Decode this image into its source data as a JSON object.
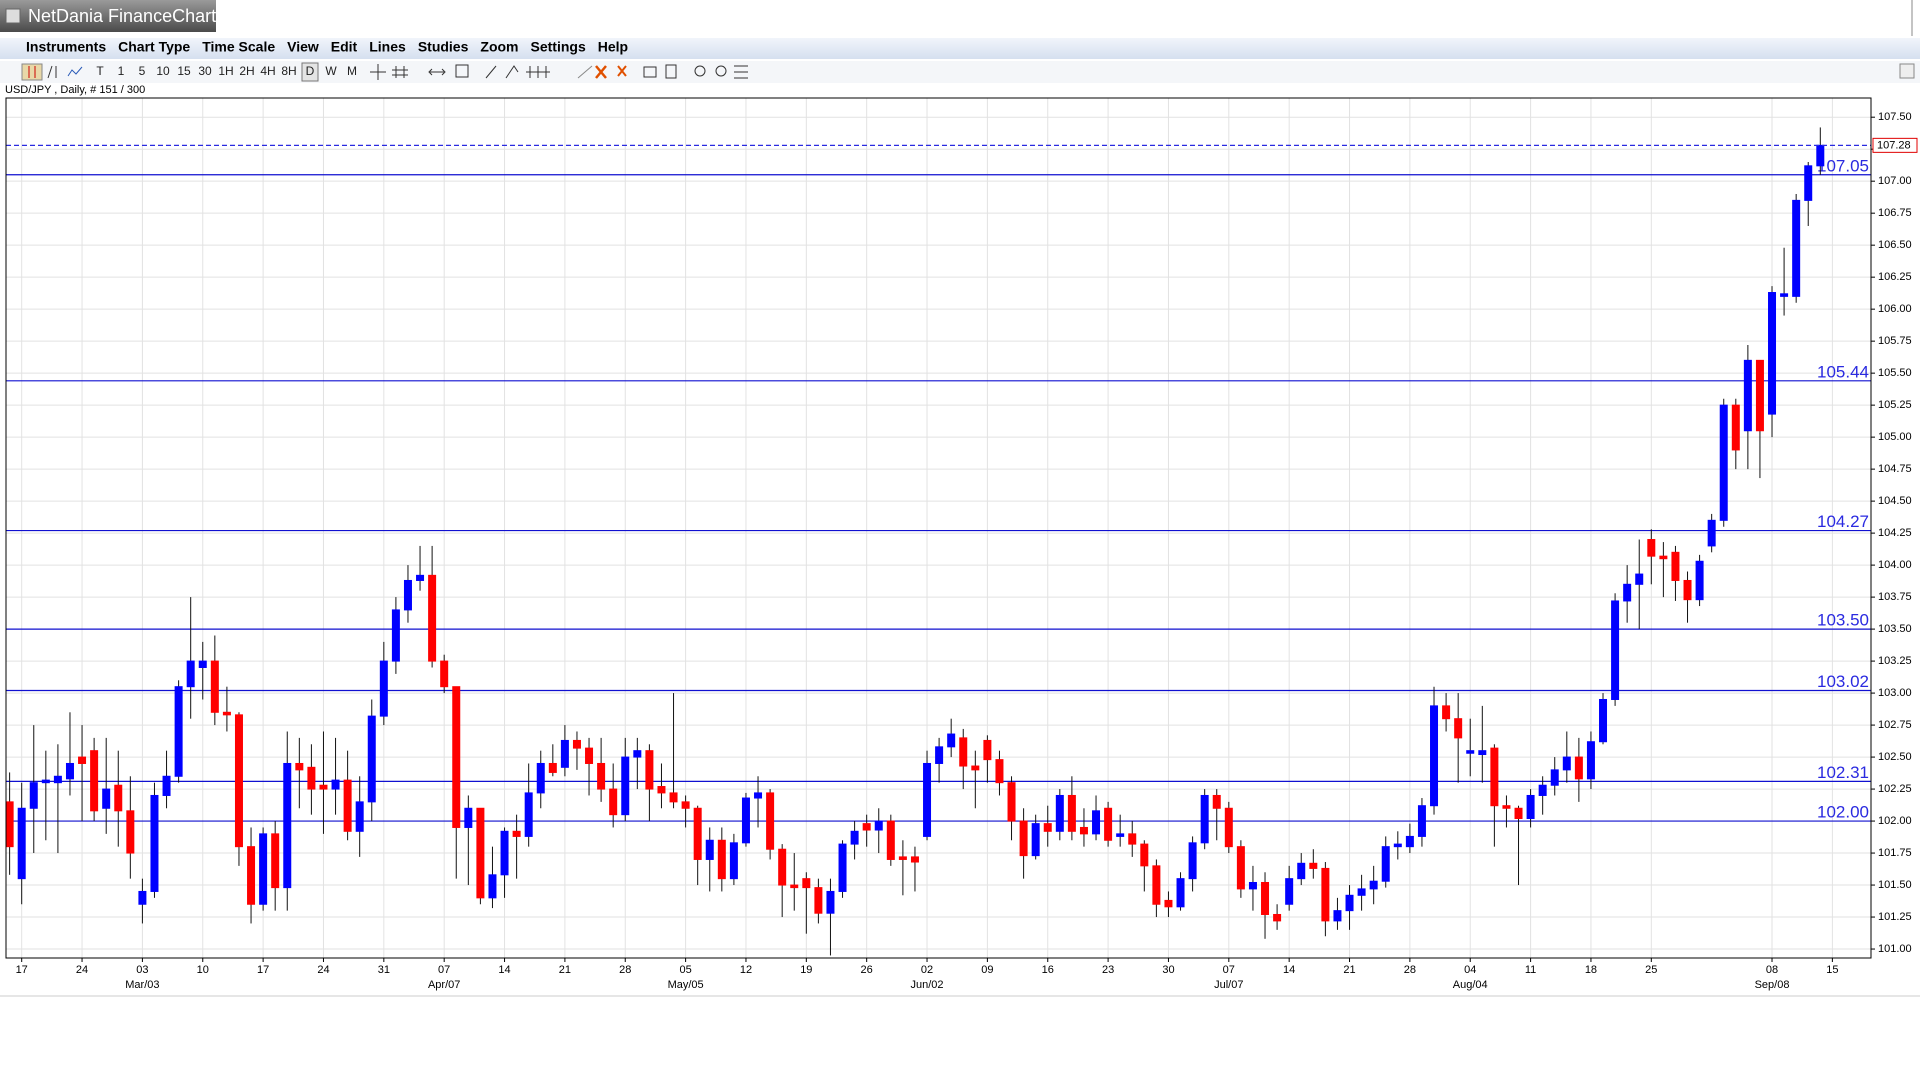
{
  "window": {
    "title": "NetDania FinanceChart",
    "menu": [
      "Instruments",
      "Chart Type",
      "Time Scale",
      "View",
      "Edit",
      "Lines",
      "Studies",
      "Zoom",
      "Settings",
      "Help"
    ],
    "timescales": [
      "T",
      "1",
      "5",
      "10",
      "15",
      "30",
      "1H",
      "2H",
      "4H",
      "8H",
      "D",
      "W",
      "M"
    ]
  },
  "chart_data": {
    "type": "candlestick",
    "title": "USD/JPY , Daily, # 151 / 300",
    "up_color": "#0000ff",
    "down_color": "#ff0000",
    "grid": true,
    "ylim": [
      100.93,
      107.65
    ],
    "xlim": [
      -0.3,
      154.2
    ],
    "yticks": [
      {
        "value": 101,
        "label": "101.00"
      },
      101.25,
      {
        "value": 101.5,
        "label": "101.50"
      },
      101.75,
      {
        "value": 102,
        "label": "102.00"
      },
      102.25,
      {
        "value": 102.5,
        "label": "102.50"
      },
      102.75,
      {
        "value": 103,
        "label": "103.00"
      },
      103.25,
      {
        "value": 103.5,
        "label": "103.50"
      },
      103.75,
      {
        "value": 104,
        "label": "104.00"
      },
      104.25,
      {
        "value": 104.5,
        "label": "104.50"
      },
      104.75,
      {
        "value": 105,
        "label": "105.00"
      },
      105.25,
      {
        "value": 105.5,
        "label": "105.50"
      },
      105.75,
      {
        "value": 106,
        "label": "106.00"
      },
      106.25,
      {
        "value": 106.5,
        "label": "106.50"
      },
      106.75,
      {
        "value": 107,
        "label": "107.00"
      },
      107.25,
      {
        "value": 107.5,
        "label": "107.50"
      }
    ],
    "xticks": [
      {
        "value": 1,
        "label": "17"
      },
      {
        "value": 6,
        "label": "24"
      },
      {
        "value": 11,
        "label": "03"
      },
      {
        "value": 16,
        "label": "10"
      },
      {
        "value": 21,
        "label": "17"
      },
      {
        "value": 26,
        "label": "24"
      },
      {
        "value": 31,
        "label": "31"
      },
      {
        "value": 36,
        "label": "07"
      },
      {
        "value": 41,
        "label": "14"
      },
      {
        "value": 46,
        "label": "21"
      },
      {
        "value": 51,
        "label": "28"
      },
      {
        "value": 56,
        "label": "05"
      },
      {
        "value": 61,
        "label": "12"
      },
      {
        "value": 66,
        "label": "19"
      },
      {
        "value": 71,
        "label": "26"
      },
      {
        "value": 76,
        "label": "02"
      },
      {
        "value": 81,
        "label": "09"
      },
      {
        "value": 86,
        "label": "16"
      },
      {
        "value": 91,
        "label": "23"
      },
      {
        "value": 96,
        "label": "30"
      },
      {
        "value": 101,
        "label": "07"
      },
      {
        "value": 106,
        "label": "14"
      },
      {
        "value": 111,
        "label": "21"
      },
      {
        "value": 116,
        "label": "28"
      },
      {
        "value": 121,
        "label": "04"
      },
      {
        "value": 126,
        "label": "11"
      },
      {
        "value": 131,
        "label": "18"
      },
      {
        "value": 136,
        "label": "25"
      },
      {
        "value": 146,
        "label": "08"
      },
      {
        "value": 151,
        "label": "15"
      }
    ],
    "month_labels": [
      {
        "value": 11,
        "label": "Mar/03"
      },
      {
        "value": 36,
        "label": "Apr/07"
      },
      {
        "value": 56,
        "label": "May/05"
      },
      {
        "value": 76,
        "label": "Jun/02"
      },
      {
        "value": 101,
        "label": "Jul/07"
      },
      {
        "value": 121,
        "label": "Aug/04"
      },
      {
        "value": 146,
        "label": "Sep/08"
      }
    ],
    "levels": [
      107.05,
      105.44,
      104.27,
      {
        "value": 103.5,
        "label": "103.50"
      },
      103.02,
      102.31,
      {
        "value": 102,
        "label": "102.00"
      }
    ],
    "last_price": 107.28,
    "candles": [
      [
        102.15,
        102.38,
        101.58,
        101.8
      ],
      [
        101.55,
        102.3,
        101.35,
        102.1
      ],
      [
        102.1,
        102.75,
        101.75,
        102.3
      ],
      [
        102.3,
        102.55,
        101.85,
        102.32
      ],
      [
        102.3,
        102.6,
        101.75,
        102.35
      ],
      [
        102.33,
        102.85,
        102.2,
        102.45
      ],
      [
        102.5,
        102.75,
        102.0,
        102.45
      ],
      [
        102.55,
        102.65,
        102.0,
        102.08
      ],
      [
        102.1,
        102.65,
        101.9,
        102.25
      ],
      [
        102.28,
        102.55,
        101.8,
        102.08
      ],
      [
        102.08,
        102.35,
        101.55,
        101.75
      ],
      [
        101.35,
        101.55,
        101.2,
        101.45
      ],
      [
        101.45,
        102.3,
        101.4,
        102.2
      ],
      [
        102.2,
        102.55,
        102.1,
        102.35
      ],
      [
        102.35,
        103.1,
        102.3,
        103.05
      ],
      [
        103.05,
        103.75,
        102.8,
        103.25
      ],
      [
        103.2,
        103.4,
        102.95,
        103.25
      ],
      [
        103.25,
        103.45,
        102.75,
        102.85
      ],
      [
        102.85,
        103.05,
        102.7,
        102.83
      ],
      [
        102.83,
        102.85,
        101.65,
        101.8
      ],
      [
        101.8,
        101.95,
        101.2,
        101.35
      ],
      [
        101.35,
        101.95,
        101.3,
        101.9
      ],
      [
        101.9,
        102.0,
        101.3,
        101.48
      ],
      [
        101.48,
        102.7,
        101.3,
        102.45
      ],
      [
        102.45,
        102.65,
        102.1,
        102.4
      ],
      [
        102.42,
        102.6,
        102.05,
        102.25
      ],
      [
        102.28,
        102.7,
        101.9,
        102.25
      ],
      [
        102.25,
        102.65,
        102.05,
        102.32
      ],
      [
        102.32,
        102.55,
        101.85,
        101.92
      ],
      [
        101.92,
        102.35,
        101.72,
        102.15
      ],
      [
        102.15,
        102.95,
        102.0,
        102.82
      ],
      [
        102.82,
        103.4,
        102.75,
        103.25
      ],
      [
        103.25,
        103.75,
        103.15,
        103.65
      ],
      [
        103.65,
        104.0,
        103.55,
        103.88
      ],
      [
        103.88,
        104.15,
        103.8,
        103.92
      ],
      [
        103.92,
        104.15,
        103.2,
        103.25
      ],
      [
        103.25,
        103.3,
        103.0,
        103.05
      ],
      [
        103.05,
        103.05,
        101.55,
        101.95
      ],
      [
        101.95,
        102.2,
        101.5,
        102.1
      ],
      [
        102.1,
        102.1,
        101.35,
        101.4
      ],
      [
        101.4,
        101.8,
        101.32,
        101.58
      ],
      [
        101.58,
        101.95,
        101.4,
        101.92
      ],
      [
        101.92,
        102.05,
        101.55,
        101.88
      ],
      [
        101.88,
        102.45,
        101.8,
        102.22
      ],
      [
        102.22,
        102.55,
        102.1,
        102.45
      ],
      [
        102.45,
        102.6,
        102.35,
        102.38
      ],
      [
        102.42,
        102.75,
        102.35,
        102.63
      ],
      [
        102.63,
        102.7,
        102.4,
        102.57
      ],
      [
        102.57,
        102.65,
        102.2,
        102.45
      ],
      [
        102.45,
        102.65,
        102.15,
        102.25
      ],
      [
        102.25,
        102.45,
        101.95,
        102.05
      ],
      [
        102.05,
        102.65,
        102.0,
        102.5
      ],
      [
        102.5,
        102.65,
        102.25,
        102.55
      ],
      [
        102.55,
        102.6,
        102.0,
        102.25
      ],
      [
        102.27,
        102.45,
        102.1,
        102.22
      ],
      [
        102.22,
        103.0,
        102.1,
        102.15
      ],
      [
        102.15,
        102.2,
        101.95,
        102.1
      ],
      [
        102.1,
        102.12,
        101.5,
        101.7
      ],
      [
        101.7,
        101.95,
        101.45,
        101.85
      ],
      [
        101.85,
        101.95,
        101.45,
        101.55
      ],
      [
        101.55,
        101.9,
        101.5,
        101.83
      ],
      [
        101.83,
        102.22,
        101.8,
        102.18
      ],
      [
        102.18,
        102.35,
        101.95,
        102.22
      ],
      [
        102.22,
        102.25,
        101.7,
        101.78
      ],
      [
        101.78,
        101.82,
        101.25,
        101.5
      ],
      [
        101.5,
        101.75,
        101.3,
        101.48
      ],
      [
        101.55,
        101.6,
        101.12,
        101.48
      ],
      [
        101.48,
        101.55,
        101.2,
        101.28
      ],
      [
        101.28,
        101.55,
        100.95,
        101.45
      ],
      [
        101.45,
        101.85,
        101.4,
        101.82
      ],
      [
        101.82,
        102.0,
        101.7,
        101.92
      ],
      [
        101.98,
        102.05,
        101.8,
        101.93
      ],
      [
        101.93,
        102.1,
        101.75,
        102.0
      ],
      [
        102.0,
        102.05,
        101.65,
        101.7
      ],
      [
        101.72,
        101.85,
        101.42,
        101.7
      ],
      [
        101.72,
        101.8,
        101.45,
        101.68
      ],
      [
        101.88,
        102.55,
        101.85,
        102.45
      ],
      [
        102.45,
        102.65,
        102.3,
        102.58
      ],
      [
        102.58,
        102.8,
        102.5,
        102.68
      ],
      [
        102.65,
        102.72,
        102.25,
        102.43
      ],
      [
        102.43,
        102.55,
        102.1,
        102.4
      ],
      [
        102.63,
        102.67,
        102.3,
        102.48
      ],
      [
        102.48,
        102.55,
        102.2,
        102.3
      ],
      [
        102.3,
        102.35,
        101.85,
        102.0
      ],
      [
        102.0,
        102.1,
        101.55,
        101.73
      ],
      [
        101.73,
        102.05,
        101.7,
        101.98
      ],
      [
        101.98,
        102.12,
        101.8,
        101.92
      ],
      [
        101.92,
        102.25,
        101.85,
        102.2
      ],
      [
        102.2,
        102.35,
        101.85,
        101.92
      ],
      [
        101.95,
        102.1,
        101.8,
        101.9
      ],
      [
        101.9,
        102.2,
        101.85,
        102.08
      ],
      [
        102.1,
        102.15,
        101.8,
        101.85
      ],
      [
        101.88,
        102.05,
        101.8,
        101.9
      ],
      [
        101.9,
        102.0,
        101.72,
        101.82
      ],
      [
        101.82,
        101.85,
        101.45,
        101.65
      ],
      [
        101.65,
        101.7,
        101.25,
        101.35
      ],
      [
        101.38,
        101.45,
        101.25,
        101.33
      ],
      [
        101.33,
        101.6,
        101.3,
        101.55
      ],
      [
        101.55,
        101.88,
        101.45,
        101.83
      ],
      [
        101.83,
        102.25,
        101.78,
        102.2
      ],
      [
        102.2,
        102.25,
        101.85,
        102.1
      ],
      [
        102.1,
        102.15,
        101.75,
        101.8
      ],
      [
        101.8,
        101.85,
        101.4,
        101.47
      ],
      [
        101.47,
        101.65,
        101.3,
        101.52
      ],
      [
        101.52,
        101.6,
        101.08,
        101.27
      ],
      [
        101.27,
        101.35,
        101.15,
        101.22
      ],
      [
        101.35,
        101.65,
        101.3,
        101.55
      ],
      [
        101.55,
        101.75,
        101.5,
        101.67
      ],
      [
        101.67,
        101.78,
        101.55,
        101.63
      ],
      [
        101.63,
        101.68,
        101.1,
        101.22
      ],
      [
        101.22,
        101.4,
        101.15,
        101.3
      ],
      [
        101.3,
        101.5,
        101.15,
        101.42
      ],
      [
        101.42,
        101.58,
        101.3,
        101.47
      ],
      [
        101.47,
        101.65,
        101.35,
        101.53
      ],
      [
        101.53,
        101.88,
        101.48,
        101.8
      ],
      [
        101.8,
        101.92,
        101.7,
        101.82
      ],
      [
        101.8,
        101.98,
        101.75,
        101.88
      ],
      [
        101.88,
        102.18,
        101.8,
        102.12
      ],
      [
        102.12,
        103.05,
        102.05,
        102.9
      ],
      [
        102.9,
        103.0,
        102.7,
        102.8
      ],
      [
        102.8,
        103.0,
        102.3,
        102.65
      ],
      [
        102.53,
        102.8,
        102.35,
        102.55
      ],
      [
        102.52,
        102.9,
        102.3,
        102.55
      ],
      [
        102.57,
        102.6,
        101.8,
        102.12
      ],
      [
        102.12,
        102.2,
        101.95,
        102.1
      ],
      [
        102.1,
        102.12,
        101.5,
        102.02
      ],
      [
        102.02,
        102.25,
        101.95,
        102.2
      ],
      [
        102.2,
        102.35,
        102.05,
        102.28
      ],
      [
        102.28,
        102.5,
        102.2,
        102.4
      ],
      [
        102.4,
        102.7,
        102.3,
        102.5
      ],
      [
        102.5,
        102.65,
        102.15,
        102.33
      ],
      [
        102.33,
        102.7,
        102.25,
        102.62
      ],
      [
        102.62,
        103.0,
        102.6,
        102.95
      ],
      [
        102.95,
        103.78,
        102.9,
        103.72
      ],
      [
        103.72,
        104.0,
        103.55,
        103.85
      ],
      [
        103.85,
        104.2,
        103.5,
        103.93
      ],
      [
        104.2,
        104.28,
        103.85,
        104.07
      ],
      [
        104.07,
        104.18,
        103.75,
        104.05
      ],
      [
        104.1,
        104.15,
        103.72,
        103.88
      ],
      [
        103.88,
        103.95,
        103.55,
        103.73
      ],
      [
        103.73,
        104.08,
        103.68,
        104.03
      ],
      [
        104.15,
        104.4,
        104.1,
        104.35
      ],
      [
        104.35,
        105.3,
        104.3,
        105.25
      ],
      [
        105.25,
        105.3,
        104.75,
        104.9
      ],
      [
        105.05,
        105.72,
        104.75,
        105.6
      ],
      [
        105.6,
        105.6,
        104.68,
        105.05
      ],
      [
        105.18,
        106.18,
        105.0,
        106.13
      ],
      [
        106.1,
        106.48,
        105.95,
        106.12
      ],
      [
        106.1,
        106.9,
        106.05,
        106.85
      ],
      [
        106.85,
        107.15,
        106.65,
        107.12
      ],
      [
        107.12,
        107.42,
        107.05,
        107.28
      ]
    ]
  }
}
